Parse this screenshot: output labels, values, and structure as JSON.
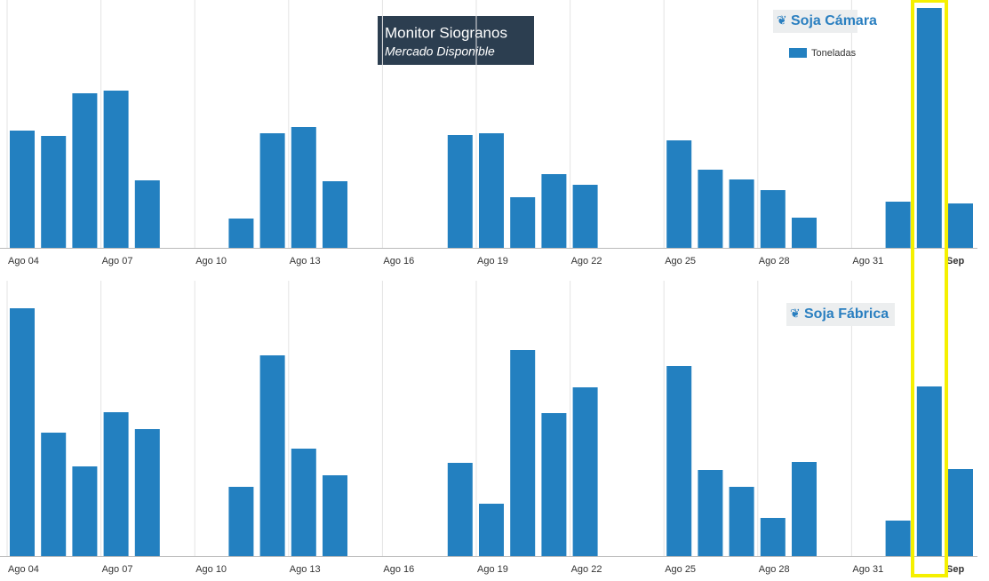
{
  "header": {
    "title": "Monitor Siogranos",
    "subtitle": "Mercado Disponible"
  },
  "chart_data": [
    {
      "type": "bar",
      "title": "Soja Cámara",
      "categories": [
        "Ago 04",
        null,
        null,
        "Ago 07",
        null,
        null,
        "Ago 10",
        null,
        null,
        "Ago 13",
        null,
        null,
        "Ago 16",
        null,
        null,
        "Ago 19",
        null,
        null,
        "Ago 22",
        null,
        null,
        "Ago 25",
        null,
        null,
        "Ago 28",
        null,
        null,
        "Ago 31",
        null,
        null,
        "Sep"
      ],
      "series": [
        {
          "name": "Toneladas",
          "color": "#2380c0",
          "values": [
            132,
            126,
            174,
            177,
            76,
            null,
            null,
            33,
            129,
            136,
            75,
            null,
            null,
            null,
            127,
            129,
            57,
            83,
            71,
            null,
            null,
            121,
            88,
            77,
            65,
            34,
            null,
            null,
            52,
            270,
            50
          ]
        }
      ],
      "ylim": [
        0,
        271
      ]
    },
    {
      "type": "bar",
      "title": "Soja Fábrica",
      "categories": [
        "Ago 04",
        null,
        null,
        "Ago 07",
        null,
        null,
        "Ago 10",
        null,
        null,
        "Ago 13",
        null,
        null,
        "Ago 16",
        null,
        null,
        "Ago 19",
        null,
        null,
        "Ago 22",
        null,
        null,
        "Ago 25",
        null,
        null,
        "Ago 28",
        null,
        null,
        "Ago 31",
        null,
        null,
        "Sep"
      ],
      "series": [
        {
          "color": "#2380c0",
          "values": [
            279,
            139,
            101,
            162,
            143,
            null,
            null,
            78,
            226,
            121,
            91,
            null,
            null,
            null,
            105,
            59,
            232,
            161,
            190,
            null,
            null,
            214,
            97,
            78,
            43,
            106,
            null,
            null,
            40,
            191,
            98
          ]
        }
      ],
      "ylim": [
        0,
        286
      ]
    }
  ]
}
